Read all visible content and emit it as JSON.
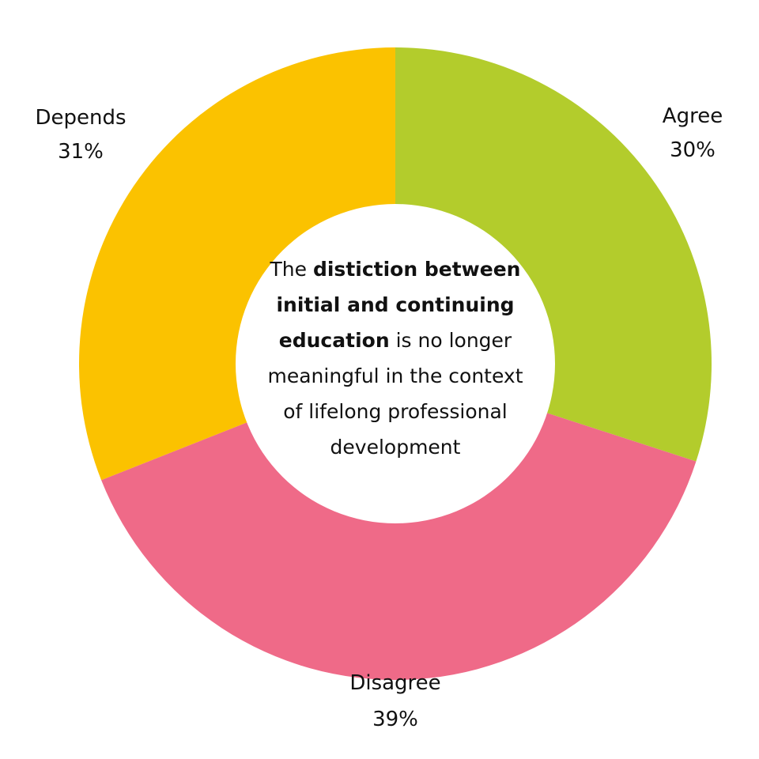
{
  "chart_data": {
    "type": "pie",
    "donut": true,
    "categories": [
      "Agree",
      "Disagree",
      "Depends"
    ],
    "values": [
      30,
      39,
      31
    ],
    "value_labels": [
      "30%",
      "39%",
      "31%"
    ],
    "colors": [
      "#b3cc2c",
      "#ef6a88",
      "#fbc200"
    ],
    "start": "12 o'clock",
    "direction": "clockwise",
    "center_text": {
      "lines": [
        [
          {
            "text": "The ",
            "bold": false
          },
          {
            "text": "distiction between",
            "bold": true
          }
        ],
        [
          {
            "text": "initial and continuing",
            "bold": true
          }
        ],
        [
          {
            "text": "education",
            "bold": true
          },
          {
            "text": " is no longer",
            "bold": false
          }
        ],
        [
          {
            "text": "meaningful in the context",
            "bold": false
          }
        ],
        [
          {
            "text": "of lifelong professional",
            "bold": false
          }
        ],
        [
          {
            "text": "development",
            "bold": false
          }
        ]
      ]
    }
  }
}
